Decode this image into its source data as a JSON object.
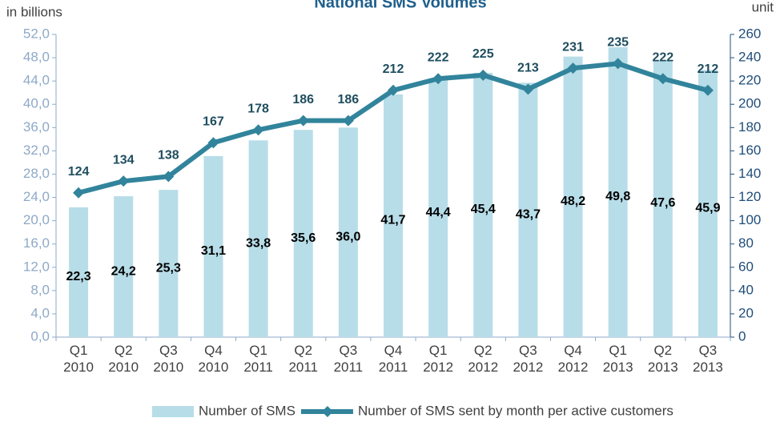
{
  "chart_data": {
    "type": "bar",
    "title": "National SMS Volumes",
    "y_label": "in billions",
    "y2_label": "unit",
    "categories": [
      "Q1 2010",
      "Q2 2010",
      "Q3 2010",
      "Q4 2010",
      "Q1 2011",
      "Q2 2011",
      "Q3 2011",
      "Q4 2011",
      "Q1 2012",
      "Q2 2012",
      "Q3 2012",
      "Q4 2012",
      "Q1 2013",
      "Q2 2013",
      "Q3 2013"
    ],
    "series": [
      {
        "name": "Number of SMS",
        "type": "bar",
        "color": "#b7dde8",
        "values": [
          22.3,
          24.2,
          25.3,
          31.1,
          33.8,
          35.6,
          36.0,
          41.7,
          44.4,
          45.4,
          43.7,
          48.2,
          49.8,
          47.6,
          45.9
        ],
        "value_labels": [
          "22,3",
          "24,2",
          "25,3",
          "31,1",
          "33,8",
          "35,6",
          "36,0",
          "41,7",
          "44,4",
          "45,4",
          "43,7",
          "48,2",
          "49,8",
          "47,6",
          "45,9"
        ]
      },
      {
        "name": "Number of SMS sent by month per active customers",
        "type": "line",
        "axis": "y2",
        "color": "#31849b",
        "values": [
          124,
          134,
          138,
          167,
          178,
          186,
          186,
          212,
          222,
          225,
          213,
          231,
          235,
          222,
          212
        ]
      }
    ],
    "ylim": [
      0,
      52
    ],
    "yticks": [
      {
        "value": 0,
        "label": "0,0"
      },
      {
        "value": 4,
        "label": "4,0"
      },
      {
        "value": 8,
        "label": "8,0"
      },
      {
        "value": 12,
        "label": "12,0"
      },
      {
        "value": 16,
        "label": "16,0"
      },
      {
        "value": 20,
        "label": "20,0"
      },
      {
        "value": 24,
        "label": "24,0"
      },
      {
        "value": 28,
        "label": "28,0"
      },
      {
        "value": 32,
        "label": "32,0"
      },
      {
        "value": 36,
        "label": "36,0"
      },
      {
        "value": 40,
        "label": "40,0"
      },
      {
        "value": 44,
        "label": "44,0"
      },
      {
        "value": 48,
        "label": "48,0"
      },
      {
        "value": 52,
        "label": "52,0"
      }
    ],
    "y2lim": [
      0,
      260
    ],
    "y2ticks": [
      0,
      20,
      40,
      60,
      80,
      100,
      120,
      140,
      160,
      180,
      200,
      220,
      240,
      260
    ],
    "legend": "bottom"
  }
}
